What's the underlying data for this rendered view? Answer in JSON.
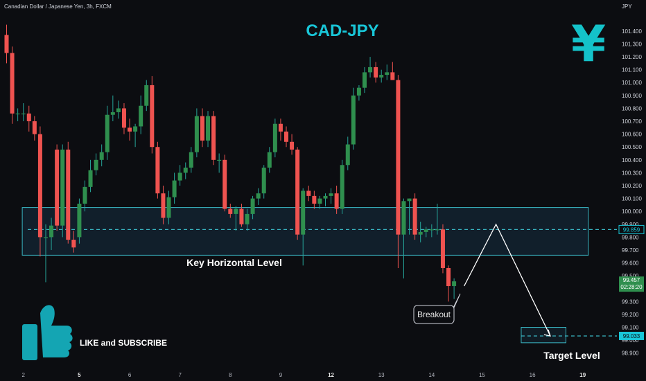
{
  "header": {
    "symbol_info": "Canadian Dollar / Japanese Yen, 3h, FXCM",
    "currency_unit": "JPY"
  },
  "title": "CAD-JPY",
  "icons": {
    "currency_symbol": "¥",
    "yen_icon": "yen-sign-icon",
    "thumb_icon": "thumbs-up-icon"
  },
  "colors": {
    "bull": "#26a69a",
    "bull_body": "#2f8f4e",
    "bear": "#ef5350",
    "zone_border": "#3ab7c4",
    "accent": "#19c6d8",
    "background": "#0c0d11"
  },
  "annotations": {
    "key_level_label": "Key Horizontal Level",
    "breakout_label": "Breakout",
    "target_label": "Target Level",
    "cta": "LIKE and SUBSCRIBE"
  },
  "price_markers": {
    "current_price": "99.457",
    "countdown": "02:28:20",
    "key_level_price": "99.859",
    "target_price": "99.033"
  },
  "chart_data": {
    "type": "candlestick",
    "y_range": [
      98.85,
      101.48
    ],
    "y_ticks": [
      "101.400",
      "101.300",
      "101.200",
      "101.100",
      "101.000",
      "100.900",
      "100.800",
      "100.700",
      "100.600",
      "100.500",
      "100.400",
      "100.300",
      "100.200",
      "100.100",
      "100.000",
      "99.900",
      "99.800",
      "99.700",
      "99.600",
      "99.500",
      "99.400",
      "99.300",
      "99.200",
      "99.100",
      "99.000",
      "98.900"
    ],
    "x_ticks": [
      {
        "label": "2",
        "bar": 3,
        "bold": false
      },
      {
        "label": "5",
        "bar": 13,
        "bold": true
      },
      {
        "label": "6",
        "bar": 22,
        "bold": false
      },
      {
        "label": "7",
        "bar": 31,
        "bold": false
      },
      {
        "label": "8",
        "bar": 40,
        "bold": false
      },
      {
        "label": "9",
        "bar": 49,
        "bold": false
      },
      {
        "label": "12",
        "bar": 58,
        "bold": true
      },
      {
        "label": "13",
        "bar": 67,
        "bold": false
      },
      {
        "label": "14",
        "bar": 76,
        "bold": false
      },
      {
        "label": "15",
        "bar": 85,
        "bold": false
      },
      {
        "label": "16",
        "bar": 94,
        "bold": false
      },
      {
        "label": "19",
        "bar": 103,
        "bold": true
      }
    ],
    "zones": [
      {
        "name": "key-horizontal-level",
        "from_bar": 2.8,
        "to_bar": 104,
        "low": 99.66,
        "high": 100.03,
        "line": 99.859
      },
      {
        "name": "target-level",
        "from_bar": 92,
        "to_bar": 100,
        "low": 98.98,
        "high": 99.1,
        "line": 99.033
      }
    ],
    "projection": [
      {
        "bar": 81.8,
        "price": 99.42
      },
      {
        "bar": 87.5,
        "price": 99.9
      },
      {
        "bar": 97.2,
        "price": 99.033
      }
    ],
    "candles": [
      {
        "o": 101.37,
        "h": 101.45,
        "l": 101.15,
        "c": 101.23
      },
      {
        "o": 101.23,
        "h": 101.28,
        "l": 100.68,
        "c": 100.76
      },
      {
        "o": 100.76,
        "h": 100.8,
        "l": 100.7,
        "c": 100.76
      },
      {
        "o": 100.76,
        "h": 100.84,
        "l": 100.7,
        "c": 100.76
      },
      {
        "o": 100.76,
        "h": 100.82,
        "l": 100.62,
        "c": 100.7
      },
      {
        "o": 100.7,
        "h": 100.74,
        "l": 100.55,
        "c": 100.6
      },
      {
        "o": 100.6,
        "h": 100.66,
        "l": 99.65,
        "c": 99.8
      },
      {
        "o": 99.8,
        "h": 99.9,
        "l": 99.45,
        "c": 99.8
      },
      {
        "o": 99.8,
        "h": 99.95,
        "l": 99.7,
        "c": 99.89
      },
      {
        "o": 100.48,
        "h": 100.52,
        "l": 99.85,
        "c": 99.89
      },
      {
        "o": 99.89,
        "h": 100.52,
        "l": 99.8,
        "c": 100.48
      },
      {
        "o": 100.48,
        "h": 100.54,
        "l": 99.75,
        "c": 99.78
      },
      {
        "o": 99.78,
        "h": 99.85,
        "l": 99.68,
        "c": 99.72
      },
      {
        "o": 99.8,
        "h": 100.1,
        "l": 99.75,
        "c": 100.06
      },
      {
        "o": 100.06,
        "h": 100.24,
        "l": 100.0,
        "c": 100.19
      },
      {
        "o": 100.19,
        "h": 100.4,
        "l": 100.15,
        "c": 100.32
      },
      {
        "o": 100.32,
        "h": 100.45,
        "l": 100.28,
        "c": 100.4
      },
      {
        "o": 100.4,
        "h": 100.52,
        "l": 100.35,
        "c": 100.46
      },
      {
        "o": 100.46,
        "h": 100.82,
        "l": 100.4,
        "c": 100.75
      },
      {
        "o": 100.75,
        "h": 100.9,
        "l": 100.7,
        "c": 100.77
      },
      {
        "o": 100.77,
        "h": 100.86,
        "l": 100.72,
        "c": 100.8
      },
      {
        "o": 100.8,
        "h": 100.84,
        "l": 100.6,
        "c": 100.65
      },
      {
        "o": 100.65,
        "h": 100.72,
        "l": 100.55,
        "c": 100.62
      },
      {
        "o": 100.62,
        "h": 100.68,
        "l": 100.5,
        "c": 100.66
      },
      {
        "o": 100.66,
        "h": 100.9,
        "l": 100.6,
        "c": 100.82
      },
      {
        "o": 100.82,
        "h": 101.02,
        "l": 100.78,
        "c": 100.98
      },
      {
        "o": 100.98,
        "h": 101.05,
        "l": 100.45,
        "c": 100.5
      },
      {
        "o": 100.5,
        "h": 100.54,
        "l": 100.1,
        "c": 100.14
      },
      {
        "o": 100.14,
        "h": 100.2,
        "l": 99.9,
        "c": 99.95
      },
      {
        "o": 99.95,
        "h": 100.16,
        "l": 99.9,
        "c": 100.11
      },
      {
        "o": 100.11,
        "h": 100.3,
        "l": 100.06,
        "c": 100.24
      },
      {
        "o": 100.24,
        "h": 100.36,
        "l": 100.2,
        "c": 100.3
      },
      {
        "o": 100.3,
        "h": 100.38,
        "l": 100.25,
        "c": 100.34
      },
      {
        "o": 100.34,
        "h": 100.5,
        "l": 100.3,
        "c": 100.46
      },
      {
        "o": 100.46,
        "h": 100.8,
        "l": 100.42,
        "c": 100.74
      },
      {
        "o": 100.74,
        "h": 100.8,
        "l": 100.5,
        "c": 100.55
      },
      {
        "o": 100.55,
        "h": 100.78,
        "l": 100.5,
        "c": 100.74
      },
      {
        "o": 100.74,
        "h": 100.78,
        "l": 100.36,
        "c": 100.4
      },
      {
        "o": 100.4,
        "h": 100.45,
        "l": 100.3,
        "c": 100.4
      },
      {
        "o": 100.4,
        "h": 100.44,
        "l": 100.0,
        "c": 100.02
      },
      {
        "o": 100.02,
        "h": 100.06,
        "l": 99.95,
        "c": 99.98
      },
      {
        "o": 99.98,
        "h": 100.04,
        "l": 99.85,
        "c": 100.02
      },
      {
        "o": 100.02,
        "h": 100.06,
        "l": 99.88,
        "c": 99.9
      },
      {
        "o": 99.9,
        "h": 100.02,
        "l": 99.85,
        "c": 99.98
      },
      {
        "o": 99.98,
        "h": 100.12,
        "l": 99.94,
        "c": 100.1
      },
      {
        "o": 100.1,
        "h": 100.18,
        "l": 100.05,
        "c": 100.14
      },
      {
        "o": 100.14,
        "h": 100.36,
        "l": 100.1,
        "c": 100.34
      },
      {
        "o": 100.34,
        "h": 100.5,
        "l": 100.3,
        "c": 100.46
      },
      {
        "o": 100.46,
        "h": 100.72,
        "l": 100.42,
        "c": 100.68
      },
      {
        "o": 100.68,
        "h": 100.72,
        "l": 100.55,
        "c": 100.62
      },
      {
        "o": 100.62,
        "h": 100.66,
        "l": 100.5,
        "c": 100.54
      },
      {
        "o": 100.54,
        "h": 100.6,
        "l": 100.44,
        "c": 100.48
      },
      {
        "o": 100.48,
        "h": 100.5,
        "l": 99.78,
        "c": 99.82
      },
      {
        "o": 99.82,
        "h": 100.18,
        "l": 99.58,
        "c": 100.16
      },
      {
        "o": 100.16,
        "h": 100.2,
        "l": 100.08,
        "c": 100.12
      },
      {
        "o": 100.12,
        "h": 100.16,
        "l": 100.02,
        "c": 100.06
      },
      {
        "o": 100.06,
        "h": 100.12,
        "l": 100.02,
        "c": 100.1
      },
      {
        "o": 100.1,
        "h": 100.14,
        "l": 100.04,
        "c": 100.12
      },
      {
        "o": 100.12,
        "h": 100.18,
        "l": 100.06,
        "c": 100.14
      },
      {
        "o": 100.14,
        "h": 100.2,
        "l": 99.98,
        "c": 100.02
      },
      {
        "o": 100.02,
        "h": 100.4,
        "l": 99.98,
        "c": 100.36
      },
      {
        "o": 100.36,
        "h": 100.58,
        "l": 100.32,
        "c": 100.52
      },
      {
        "o": 100.52,
        "h": 100.96,
        "l": 100.48,
        "c": 100.9
      },
      {
        "o": 100.9,
        "h": 100.98,
        "l": 100.86,
        "c": 100.96
      },
      {
        "o": 100.96,
        "h": 101.12,
        "l": 100.92,
        "c": 101.08
      },
      {
        "o": 101.08,
        "h": 101.2,
        "l": 101.04,
        "c": 101.12
      },
      {
        "o": 101.12,
        "h": 101.16,
        "l": 101.0,
        "c": 101.04
      },
      {
        "o": 101.04,
        "h": 101.1,
        "l": 101.0,
        "c": 101.06
      },
      {
        "o": 101.06,
        "h": 101.14,
        "l": 101.02,
        "c": 101.08
      },
      {
        "o": 101.08,
        "h": 101.16,
        "l": 101.02,
        "c": 101.02
      },
      {
        "o": 101.02,
        "h": 101.06,
        "l": 99.56,
        "c": 99.82
      },
      {
        "o": 99.82,
        "h": 100.1,
        "l": 99.48,
        "c": 100.08
      },
      {
        "o": 100.08,
        "h": 100.1,
        "l": 99.82,
        "c": 100.1
      },
      {
        "o": 100.1,
        "h": 100.14,
        "l": 99.78,
        "c": 99.82
      },
      {
        "o": 99.82,
        "h": 99.92,
        "l": 99.76,
        "c": 99.84
      },
      {
        "o": 99.84,
        "h": 99.88,
        "l": 99.8,
        "c": 99.86
      },
      {
        "o": 99.86,
        "h": 99.9,
        "l": 99.8,
        "c": 99.86
      },
      {
        "o": 99.86,
        "h": 100.06,
        "l": 99.82,
        "c": 99.86
      },
      {
        "o": 99.86,
        "h": 99.9,
        "l": 99.52,
        "c": 99.56
      },
      {
        "o": 99.56,
        "h": 99.58,
        "l": 99.3,
        "c": 99.42
      },
      {
        "o": 99.42,
        "h": 99.48,
        "l": 99.32,
        "c": 99.457
      }
    ]
  }
}
